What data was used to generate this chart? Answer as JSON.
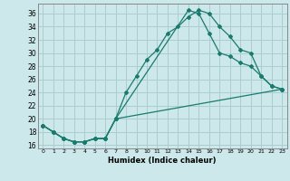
{
  "xlabel": "Humidex (Indice chaleur)",
  "bg_color": "#cce8ea",
  "grid_color": "#aacdd0",
  "line_color": "#1a7a6e",
  "xlim": [
    -0.5,
    23.5
  ],
  "ylim": [
    15.5,
    37.5
  ],
  "xticks": [
    0,
    1,
    2,
    3,
    4,
    5,
    6,
    7,
    8,
    9,
    10,
    11,
    12,
    13,
    14,
    15,
    16,
    17,
    18,
    19,
    20,
    21,
    22,
    23
  ],
  "yticks": [
    16,
    18,
    20,
    22,
    24,
    26,
    28,
    30,
    32,
    34,
    36
  ],
  "line1_x": [
    0,
    1,
    2,
    3,
    4,
    5,
    6,
    7,
    8,
    9,
    10,
    11,
    12,
    13,
    14,
    15,
    16,
    17,
    18,
    19,
    20,
    21,
    22,
    23
  ],
  "line1_y": [
    19,
    18,
    17,
    16.5,
    16.5,
    17,
    17,
    20,
    24,
    26.5,
    29,
    30.5,
    33,
    34,
    35.5,
    36.5,
    36,
    34,
    32.5,
    30.5,
    30,
    26.5,
    25,
    24.5
  ],
  "line2_x": [
    0,
    1,
    2,
    3,
    4,
    5,
    6,
    7,
    14,
    15,
    16,
    17,
    18,
    19,
    20,
    21,
    22,
    23
  ],
  "line2_y": [
    19,
    18,
    17,
    16.5,
    16.5,
    17,
    17,
    20,
    36.5,
    36,
    33,
    30,
    29.5,
    28.5,
    28,
    26.5,
    25,
    24.5
  ],
  "line3_x": [
    0,
    1,
    2,
    3,
    4,
    5,
    6,
    7,
    23
  ],
  "line3_y": [
    19,
    18,
    17,
    16.5,
    16.5,
    17,
    17,
    20,
    24.5
  ]
}
